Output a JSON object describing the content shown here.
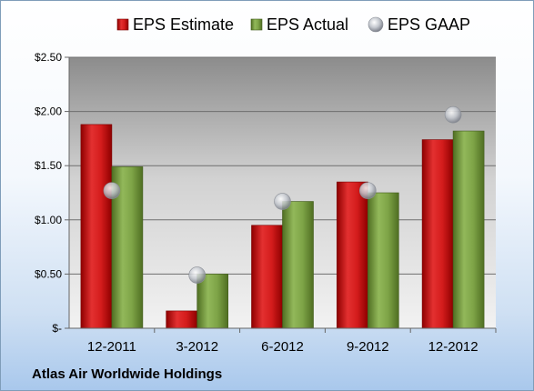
{
  "company": "Atlas Air Worldwide Holdings",
  "chart_data": {
    "type": "bar",
    "categories": [
      "12-2011",
      "3-2012",
      "6-2012",
      "9-2012",
      "12-2012"
    ],
    "series": [
      {
        "name": "EPS Estimate",
        "type": "bar",
        "color": "#cc1414",
        "values": [
          1.88,
          0.16,
          0.95,
          1.35,
          1.74
        ]
      },
      {
        "name": "EPS Actual",
        "type": "bar",
        "color": "#78a040",
        "values": [
          1.49,
          0.5,
          1.17,
          1.25,
          1.82
        ]
      },
      {
        "name": "EPS GAAP",
        "type": "scatter",
        "color": "#b8bcc4",
        "values": [
          1.27,
          0.49,
          1.17,
          1.27,
          1.97
        ]
      }
    ],
    "ylim": [
      0,
      2.5
    ],
    "yticks": [
      0,
      0.5,
      1.0,
      1.5,
      2.0,
      2.5
    ],
    "ytick_labels": [
      "$-",
      "$0.50",
      "$1.00",
      "$1.50",
      "$2.00",
      "$2.50"
    ],
    "legend_position": "top",
    "grid": true
  }
}
